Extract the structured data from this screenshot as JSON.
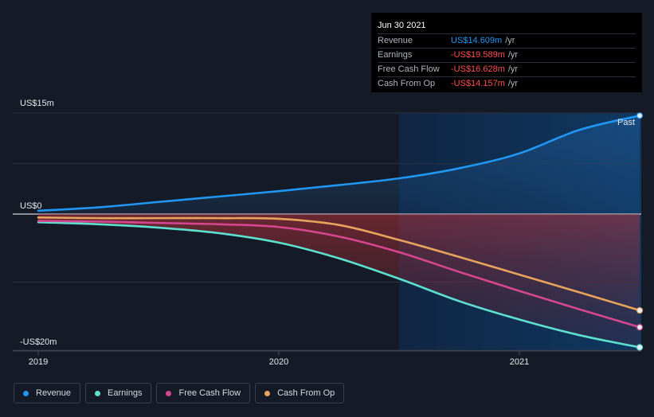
{
  "tooltip": {
    "date": "Jun 30 2021",
    "rows": [
      {
        "label": "Revenue",
        "value": "US$14.609m",
        "unit": "/yr",
        "color": "#2196f3"
      },
      {
        "label": "Earnings",
        "value": "-US$19.589m",
        "unit": "/yr",
        "color": "#ff4d4d"
      },
      {
        "label": "Free Cash Flow",
        "value": "-US$16.628m",
        "unit": "/yr",
        "color": "#ff4d4d"
      },
      {
        "label": "Cash From Op",
        "value": "-US$14.157m",
        "unit": "/yr",
        "color": "#ff4d4d"
      }
    ]
  },
  "legend": [
    {
      "label": "Revenue",
      "color": "#2196f3",
      "icon": "revenue-dot"
    },
    {
      "label": "Earnings",
      "color": "#5ee0d0",
      "icon": "earnings-dot"
    },
    {
      "label": "Free Cash Flow",
      "color": "#d6478f",
      "icon": "fcf-dot"
    },
    {
      "label": "Cash From Op",
      "color": "#e8a45c",
      "icon": "cfo-dot"
    }
  ],
  "chart_data": {
    "type": "line",
    "x": [
      2019.0,
      2019.25,
      2019.5,
      2019.75,
      2020.0,
      2020.25,
      2020.5,
      2020.75,
      2021.0,
      2021.25,
      2021.5
    ],
    "xticks": [
      {
        "value": 2019,
        "label": "2019"
      },
      {
        "value": 2020,
        "label": "2020"
      },
      {
        "value": 2021,
        "label": "2021"
      }
    ],
    "yticks": [
      {
        "value": 15,
        "label": "US$15m"
      },
      {
        "value": 0,
        "label": "US$0"
      },
      {
        "value": -20,
        "label": "-US$20m"
      }
    ],
    "ylim": [
      -20,
      15
    ],
    "xlim": [
      2018.9,
      2021.5
    ],
    "past_start": 2020.5,
    "past_label": "Past",
    "series": [
      {
        "name": "Revenue",
        "color": "#2196f3",
        "values": [
          0.5,
          1.0,
          1.8,
          2.6,
          3.4,
          4.3,
          5.3,
          6.8,
          9.0,
          12.5,
          14.609
        ]
      },
      {
        "name": "Earnings",
        "color": "#5ee0d0",
        "values": [
          -1.2,
          -1.5,
          -2.0,
          -2.8,
          -4.2,
          -6.5,
          -9.5,
          -12.8,
          -15.5,
          -17.8,
          -19.589
        ]
      },
      {
        "name": "Free Cash Flow",
        "color": "#d6478f",
        "values": [
          -1.0,
          -1.1,
          -1.3,
          -1.5,
          -1.9,
          -3.3,
          -5.6,
          -8.5,
          -11.3,
          -14.0,
          -16.628
        ]
      },
      {
        "name": "Cash From Op",
        "color": "#e8a45c",
        "values": [
          -0.5,
          -0.6,
          -0.6,
          -0.6,
          -0.7,
          -1.6,
          -3.8,
          -6.3,
          -8.9,
          -11.5,
          -14.157
        ]
      }
    ]
  }
}
